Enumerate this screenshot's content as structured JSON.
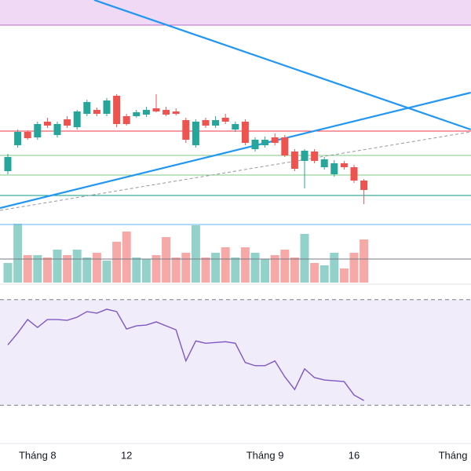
{
  "chart_data": {
    "type": "candlestick",
    "categories": [
      null,
      null,
      null,
      "Tháng 8",
      null,
      null,
      null,
      null,
      null,
      null,
      null,
      null,
      "12",
      null,
      null,
      null,
      null,
      null,
      null,
      null,
      null,
      null,
      null,
      null,
      null,
      null,
      "Tháng 9",
      null,
      null,
      null,
      null,
      null,
      null,
      null,
      null,
      "16",
      null,
      null,
      null,
      null,
      null,
      null,
      null,
      null,
      null,
      "Tháng"
    ],
    "open": [
      56.4,
      63,
      66.4,
      65,
      69,
      65.6,
      69.6,
      67.6,
      71,
      72,
      71,
      75.6,
      70.4,
      70.4,
      70.8,
      72.4,
      72,
      71.6,
      69.4,
      63,
      69.4,
      68,
      70,
      67,
      69,
      62,
      63,
      65,
      65,
      61.4,
      59,
      61.4,
      57.4,
      55.6,
      58.4,
      57.4,
      54,
      null,
      null,
      null,
      null,
      null,
      null,
      null,
      null,
      null
    ],
    "high": [
      60.8,
      67,
      66.8,
      69,
      70,
      69,
      70.4,
      72,
      74.6,
      72.6,
      75,
      76,
      71,
      72,
      72.8,
      76,
      72.8,
      72.4,
      70,
      69.6,
      70,
      70.4,
      71,
      69,
      69.6,
      65,
      65.2,
      66,
      65.6,
      62,
      62,
      62,
      60,
      59.2,
      59,
      58,
      54.4,
      null,
      null,
      null,
      null,
      null,
      null,
      null,
      null,
      null
    ],
    "low": [
      55.6,
      62.4,
      64.4,
      64.4,
      67.4,
      65,
      67.4,
      67,
      70.4,
      70.4,
      70.4,
      67.6,
      68,
      70,
      70.2,
      71.4,
      70.4,
      70.6,
      63.6,
      62.4,
      67.4,
      67.4,
      68.4,
      66.4,
      63,
      61.4,
      62.4,
      63,
      60,
      56.4,
      52,
      58.4,
      56.8,
      55,
      56.8,
      53.4,
      48,
      null,
      null,
      null,
      null,
      null,
      null,
      null,
      null,
      null
    ],
    "close": [
      60,
      66.4,
      64.8,
      68.4,
      68,
      68.4,
      68,
      71.6,
      74,
      71,
      74.4,
      68.4,
      68.4,
      71.4,
      72,
      71.6,
      70.8,
      71,
      64.4,
      69,
      68,
      69.4,
      69,
      68.4,
      63.6,
      64.4,
      64.4,
      63.6,
      60.4,
      57,
      61.6,
      59,
      59.4,
      58.4,
      57.4,
      54,
      51.6,
      null,
      null,
      null,
      null,
      null,
      null,
      null,
      null,
      null
    ],
    "up_color": "#26a69a",
    "down_color": "#ef5350",
    "ylim": [
      28,
      100
    ],
    "zone": {
      "from": 93.6,
      "to": 100,
      "color": "#efd9f4",
      "border": "#ba68c8"
    },
    "levels": [
      {
        "value": 66.6,
        "color": "#f23645"
      },
      {
        "value": 60.4,
        "color": "#81c784"
      },
      {
        "value": 55.4,
        "color": "#81c784"
      },
      {
        "value": 50.2,
        "color": "#089981"
      },
      {
        "value": 42.8,
        "color": "#64b5f6"
      },
      {
        "value": 34,
        "color": "#787b86"
      }
    ],
    "trend_lines": [
      {
        "x": [
          8.73,
          46.8
        ],
        "y": [
          100,
          67
        ],
        "color": "#2196f3",
        "dashed": false
      },
      {
        "x": [
          -0.79,
          46.8
        ],
        "y": [
          47,
          76.4
        ],
        "color": "#2196f3",
        "dashed": false
      },
      {
        "x": [
          -0.79,
          46.8
        ],
        "y": [
          46.4,
          66.4
        ],
        "color": "#9598a1",
        "dashed": true
      }
    ],
    "volume": {
      "values": [
        25,
        75,
        35,
        35,
        32,
        42,
        35,
        42,
        32,
        38,
        28,
        52,
        65,
        32,
        30,
        35,
        58,
        32,
        38,
        73,
        32,
        38,
        45,
        32,
        45,
        38,
        30,
        35,
        42,
        32,
        62,
        25,
        22,
        38,
        18,
        38,
        55,
        null,
        null,
        null,
        null,
        null,
        null,
        null,
        null,
        null
      ],
      "ylim": [
        0,
        80
      ],
      "up_color": "#93d2cb",
      "down_color": "#f7a9a7"
    },
    "rsi": {
      "values": [
        52.9,
        57.4,
        62.5,
        59.5,
        62.5,
        62.5,
        62.2,
        63.4,
        65.5,
        64.9,
        66.4,
        65.5,
        58.9,
        60.1,
        60.4,
        61.6,
        60.1,
        58.6,
        46.8,
        54.4,
        53.5,
        53.8,
        54.1,
        53.5,
        46.2,
        45,
        45,
        46.8,
        40.8,
        36,
        43.8,
        40.5,
        39.6,
        39.3,
        39,
        33.9,
        31.8,
        null,
        null,
        null,
        null,
        null,
        null,
        null,
        null,
        null
      ],
      "ylim": [
        17,
        75
      ],
      "bands": [
        30,
        70
      ],
      "color": "#7e57c2",
      "band_fill": "#f1ecfa"
    }
  }
}
